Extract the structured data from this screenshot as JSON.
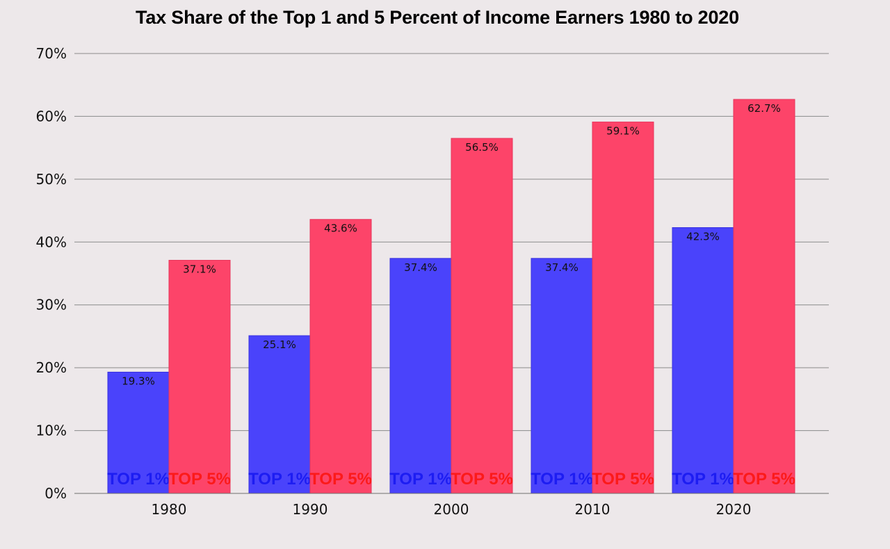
{
  "chart_data": {
    "type": "bar",
    "title": "Tax Share of the Top 1 and 5 Percent of Income Earners 1980 to 2020",
    "categories": [
      "1980",
      "1990",
      "2000",
      "2010",
      "2020"
    ],
    "series": [
      {
        "name": "TOP 1%",
        "values": [
          19.3,
          25.1,
          37.4,
          37.4,
          42.3
        ],
        "labels": [
          "19.3%",
          "25.1%",
          "37.4%",
          "37.4%",
          "42.3%"
        ],
        "color": "#4a43fb",
        "label_color": "#1d1df2"
      },
      {
        "name": "TOP 5%",
        "values": [
          37.1,
          43.6,
          56.5,
          59.1,
          62.7
        ],
        "labels": [
          "37.1%",
          "43.6%",
          "56.5%",
          "59.1%",
          "62.7%"
        ],
        "color": "#fd4469",
        "label_color": "#fc1a1a"
      }
    ],
    "ylim": [
      0,
      70
    ],
    "yticks": [
      "0%",
      "10%",
      "20%",
      "30%",
      "40%",
      "50%",
      "60%",
      "70%"
    ],
    "grid": true,
    "legend": "none"
  }
}
